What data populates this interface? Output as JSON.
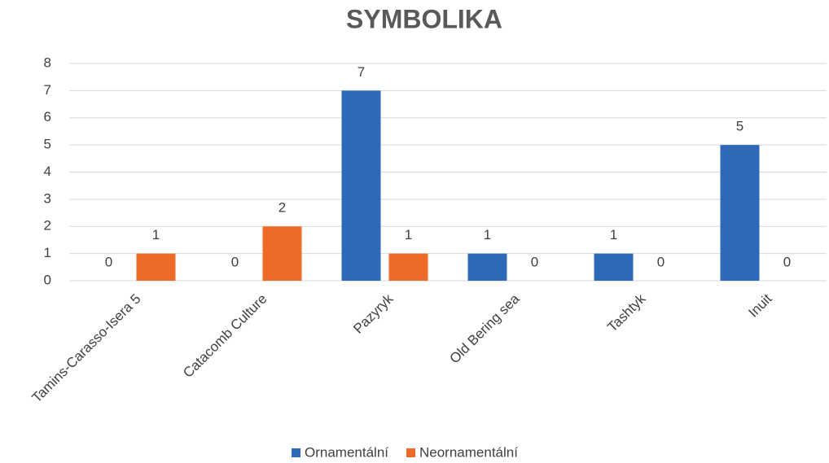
{
  "chart_data": {
    "type": "bar",
    "title": "SYMBOLIKA",
    "categories": [
      "Tamins-Carasso-Isera 5",
      "Catacomb Culture",
      "Pazyryk",
      "Old Bering sea",
      "Tashtyk",
      "Inuit"
    ],
    "series": [
      {
        "name": "Ornamentální",
        "color": "#2e69b8",
        "values": [
          0,
          0,
          7,
          1,
          1,
          5
        ]
      },
      {
        "name": "Neornamentální",
        "color": "#ee6a28",
        "values": [
          1,
          2,
          1,
          0,
          0,
          0
        ]
      }
    ],
    "ylim": [
      0,
      8
    ],
    "yticks": [
      0,
      1,
      2,
      3,
      4,
      5,
      6,
      7,
      8
    ],
    "grid": true,
    "legend": "bottom"
  }
}
